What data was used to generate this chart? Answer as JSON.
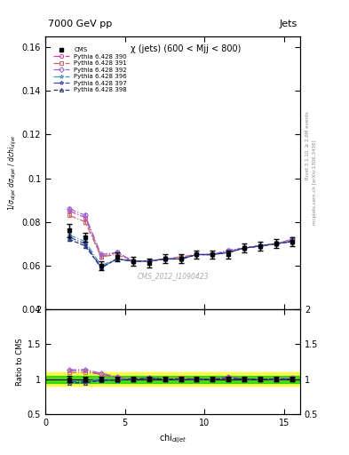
{
  "title_left": "7000 GeV pp",
  "title_right": "Jets",
  "annotation": "χ (jets) (600 < Mjj < 800)",
  "watermark": "CMS_2012_I1090423",
  "right_label_top": "Rivet 3.1.10, ≥ 2.6M events",
  "right_label_bot": "mcplots.cern.ch [arXiv:1306.3436]",
  "ylim_main": [
    0.04,
    0.165
  ],
  "ylim_ratio": [
    0.5,
    2.0
  ],
  "xlim": [
    0,
    16
  ],
  "chi_values": [
    1.5,
    2.5,
    3.5,
    4.5,
    5.5,
    6.5,
    7.5,
    8.5,
    9.5,
    10.5,
    11.5,
    12.5,
    13.5,
    14.5,
    15.5
  ],
  "cms_data": [
    0.076,
    0.073,
    0.06,
    0.064,
    0.062,
    0.061,
    0.063,
    0.063,
    0.065,
    0.065,
    0.065,
    0.068,
    0.069,
    0.07,
    0.071
  ],
  "cms_err": [
    0.003,
    0.002,
    0.002,
    0.002,
    0.002,
    0.002,
    0.002,
    0.002,
    0.002,
    0.002,
    0.002,
    0.002,
    0.002,
    0.002,
    0.002
  ],
  "pythia_390": [
    0.085,
    0.082,
    0.064,
    0.066,
    0.062,
    0.062,
    0.063,
    0.063,
    0.065,
    0.065,
    0.067,
    0.068,
    0.069,
    0.07,
    0.071
  ],
  "pythia_391": [
    0.083,
    0.08,
    0.064,
    0.065,
    0.062,
    0.062,
    0.063,
    0.064,
    0.065,
    0.065,
    0.066,
    0.068,
    0.069,
    0.07,
    0.072
  ],
  "pythia_392": [
    0.086,
    0.083,
    0.065,
    0.066,
    0.062,
    0.062,
    0.063,
    0.063,
    0.065,
    0.065,
    0.067,
    0.068,
    0.069,
    0.07,
    0.072
  ],
  "pythia_396": [
    0.074,
    0.071,
    0.06,
    0.063,
    0.062,
    0.062,
    0.063,
    0.063,
    0.065,
    0.065,
    0.066,
    0.068,
    0.069,
    0.07,
    0.071
  ],
  "pythia_397": [
    0.073,
    0.07,
    0.059,
    0.063,
    0.062,
    0.062,
    0.063,
    0.063,
    0.065,
    0.065,
    0.066,
    0.068,
    0.069,
    0.07,
    0.071
  ],
  "pythia_398": [
    0.072,
    0.069,
    0.059,
    0.063,
    0.062,
    0.062,
    0.063,
    0.063,
    0.065,
    0.065,
    0.066,
    0.068,
    0.069,
    0.07,
    0.071
  ],
  "series": [
    {
      "key": "390",
      "color": "#cc44aa",
      "ls": "-.",
      "marker": "o",
      "label": "Pythia 6.428 390"
    },
    {
      "key": "391",
      "color": "#cc6666",
      "ls": "-.",
      "marker": "s",
      "label": "Pythia 6.428 391"
    },
    {
      "key": "392",
      "color": "#9966cc",
      "ls": "-.",
      "marker": "D",
      "label": "Pythia 6.428 392"
    },
    {
      "key": "396",
      "color": "#4499bb",
      "ls": "-.",
      "marker": "*",
      "label": "Pythia 6.428 396"
    },
    {
      "key": "397",
      "color": "#4444bb",
      "ls": "-.",
      "marker": "*",
      "label": "Pythia 6.428 397"
    },
    {
      "key": "398",
      "color": "#223377",
      "ls": "--",
      "marker": "^",
      "label": "Pythia 6.428 398"
    }
  ],
  "green_band": 0.05,
  "yellow_band": 0.1
}
